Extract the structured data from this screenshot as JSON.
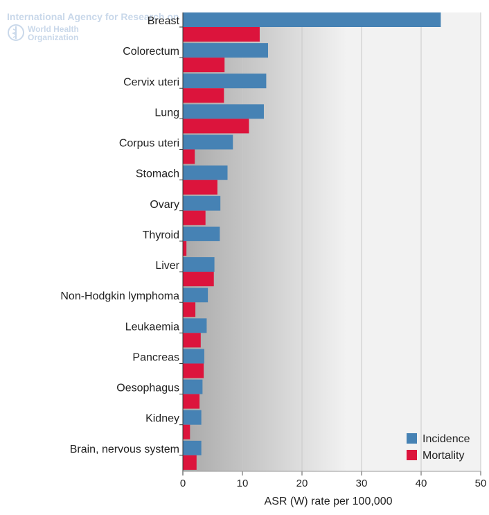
{
  "watermark": {
    "agency": "International Agency for Research on",
    "org": "World Health Organization"
  },
  "colors": {
    "incidence": "#4682b4",
    "mortality": "#dc143c",
    "gradient_start": "#a9a9a9",
    "gradient_end": "#f2f2f2",
    "grid": "#c8c8c8"
  },
  "chart_data": {
    "type": "bar",
    "orientation": "horizontal",
    "categories": [
      "Breast",
      "Colorectum",
      "Cervix uteri",
      "Lung",
      "Corpus uteri",
      "Stomach",
      "Ovary",
      "Thyroid",
      "Liver",
      "Non-Hodgkin lymphoma",
      "Leukaemia",
      "Pancreas",
      "Oesophagus",
      "Kidney",
      "Brain, nervous system"
    ],
    "series": [
      {
        "name": "Incidence",
        "color": "#4682b4",
        "values": [
          43.3,
          14.3,
          14.0,
          13.6,
          8.4,
          7.5,
          6.3,
          6.2,
          5.3,
          4.2,
          4.0,
          3.6,
          3.3,
          3.1,
          3.1
        ]
      },
      {
        "name": "Mortality",
        "color": "#dc143c",
        "values": [
          12.9,
          7.0,
          6.9,
          11.1,
          2.0,
          5.8,
          3.8,
          0.6,
          5.2,
          2.1,
          3.0,
          3.5,
          2.8,
          1.2,
          2.3
        ]
      }
    ],
    "xlabel": "ASR (W) rate per 100,000",
    "xlim": [
      0,
      50
    ],
    "xticks": [
      "0",
      "10",
      "20",
      "30",
      "40",
      "50"
    ],
    "grid": true,
    "legend_position": "bottom-right"
  }
}
